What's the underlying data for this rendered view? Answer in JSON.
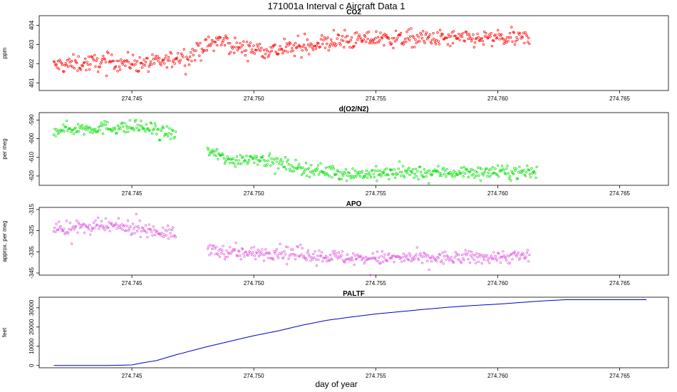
{
  "figure": {
    "title": "171001a   Interval c Aircraft Data 1",
    "xlabel": "day of year"
  },
  "chart_data": [
    {
      "type": "scatter",
      "title": "CO2",
      "ylabel": "ppm",
      "color": "#ff0000",
      "xlim": [
        274.7412,
        274.767
      ],
      "ylim": [
        400.6,
        404.5
      ],
      "xticks": [
        274.745,
        274.75,
        274.755,
        274.76,
        274.765
      ],
      "xtick_labels": [
        "274.745",
        "274.750",
        "274.755",
        "274.760",
        "274.765"
      ],
      "yticks": [
        401,
        402,
        403,
        404
      ],
      "ytick_labels": [
        "401",
        "402",
        "403",
        "404"
      ],
      "x_range": [
        274.7418,
        274.7613
      ],
      "trend": {
        "x": [
          274.7418,
          274.744,
          274.746,
          274.7475,
          274.7485,
          274.7495,
          274.751,
          274.753,
          274.755,
          274.758,
          274.7613
        ],
        "y": [
          401.9,
          402.1,
          402.0,
          402.5,
          403.2,
          402.8,
          402.7,
          403.1,
          403.3,
          403.3,
          403.3
        ]
      },
      "noise": 0.28,
      "gap": null,
      "n_points": 560
    },
    {
      "type": "scatter",
      "title": "d(O2/N2)",
      "ylabel": "per meg",
      "color": "#00e000",
      "xlim": [
        274.7412,
        274.767
      ],
      "ylim": [
        -625,
        -586
      ],
      "xticks": [
        274.745,
        274.75,
        274.755,
        274.76,
        274.765
      ],
      "xtick_labels": [
        "274.745",
        "274.750",
        "274.755",
        "274.760",
        "274.765"
      ],
      "yticks": [
        -620,
        -610,
        -600,
        -590
      ],
      "ytick_labels": [
        "-620",
        "-610",
        "-600",
        "-590"
      ],
      "x_range": [
        274.7418,
        274.7616
      ],
      "trend": {
        "x": [
          274.7418,
          274.744,
          274.7455,
          274.7468,
          274.7482,
          274.749,
          274.75,
          274.752,
          274.754,
          274.758,
          274.7616
        ],
        "y": [
          -595,
          -594,
          -594,
          -598,
          -607,
          -612,
          -610,
          -616,
          -619,
          -618,
          -618
        ]
      },
      "noise": 2.2,
      "gap": [
        274.7468,
        274.7481
      ],
      "n_points": 560
    },
    {
      "type": "scatter",
      "title": "APO",
      "ylabel": "approx. per meg",
      "color": "#e060e0",
      "xlim": [
        274.7412,
        274.767
      ],
      "ylim": [
        -346,
        -314
      ],
      "xticks": [
        274.745,
        274.75,
        274.755,
        274.76,
        274.765
      ],
      "xtick_labels": [
        "274.745",
        "274.750",
        "274.755",
        "274.760",
        "274.765"
      ],
      "yticks": [
        -345,
        -335,
        -325,
        -315
      ],
      "ytick_labels": [
        "-345",
        "-335",
        "-325",
        "-315"
      ],
      "x_range": [
        274.7418,
        274.7613
      ],
      "trend": {
        "x": [
          274.7418,
          274.744,
          274.7455,
          274.7468,
          274.7482,
          274.7495,
          274.751,
          274.754,
          274.758,
          274.7613
        ],
        "y": [
          -324,
          -323,
          -324,
          -327,
          -334,
          -336,
          -335,
          -338,
          -338,
          -337
        ]
      },
      "noise": 2.0,
      "gap": [
        274.7468,
        274.7481
      ],
      "n_points": 560
    },
    {
      "type": "line",
      "title": "PALTF",
      "ylabel": "feet",
      "color": "#0000cc",
      "xlim": [
        274.7412,
        274.767
      ],
      "ylim": [
        -1200,
        35500
      ],
      "xticks": [
        274.745,
        274.75,
        274.755,
        274.76,
        274.765
      ],
      "xtick_labels": [
        "274.745",
        "274.750",
        "274.755",
        "274.760",
        "274.765"
      ],
      "yticks": [
        0,
        10000,
        20000,
        30000
      ],
      "ytick_labels": [
        "0",
        "10000",
        "20000",
        "30000"
      ],
      "x": [
        274.7418,
        274.743,
        274.744,
        274.745,
        274.7455,
        274.746,
        274.7468,
        274.748,
        274.749,
        274.75,
        274.751,
        274.752,
        274.753,
        274.754,
        274.755,
        274.756,
        274.757,
        274.758,
        274.759,
        274.76,
        274.761,
        274.762,
        274.7628,
        274.764,
        274.765,
        274.7661
      ],
      "y": [
        0,
        0,
        0,
        300,
        1500,
        2500,
        5500,
        9500,
        12500,
        15500,
        18000,
        21000,
        23500,
        25200,
        26800,
        28000,
        29200,
        30300,
        31200,
        31900,
        32800,
        33700,
        34200,
        34200,
        34200,
        34200
      ]
    }
  ]
}
